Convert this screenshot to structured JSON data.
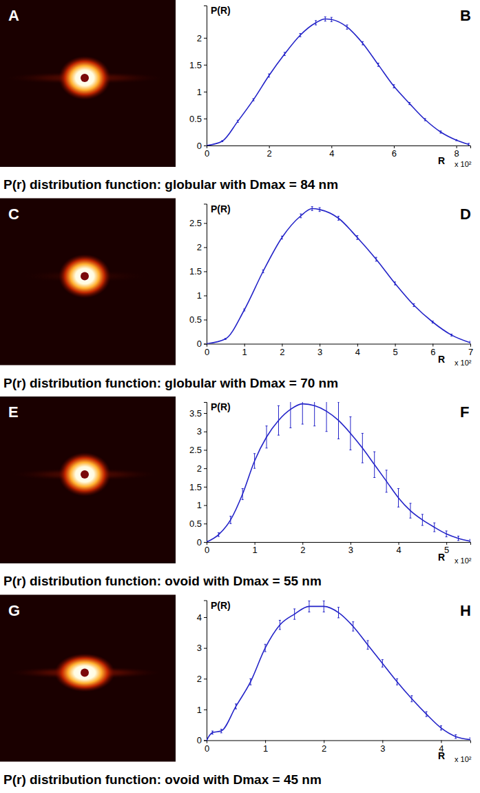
{
  "chart_data": [
    {
      "type": "line",
      "annotations": [
        "A",
        "B"
      ],
      "ylabel": "P(R)",
      "xlabel": "R",
      "x_multiplier": "x 10²",
      "caption": "P(r) distribution function: globular with Dmax = 84 nm",
      "color": "#2323c8",
      "xlim": [
        0,
        8.45
      ],
      "ylim": [
        0,
        2.6
      ],
      "xticks": [
        0,
        2,
        4,
        6,
        8
      ],
      "yticks": [
        0,
        0.5,
        1,
        1.5,
        2
      ],
      "x": [
        0,
        0.5,
        1,
        1.5,
        2,
        2.5,
        3,
        3.5,
        3.8,
        4,
        4.5,
        5,
        5.5,
        6,
        6.5,
        7,
        7.5,
        8,
        8.4
      ],
      "values": [
        0,
        0.08,
        0.45,
        0.85,
        1.3,
        1.7,
        2.05,
        2.28,
        2.35,
        2.34,
        2.2,
        1.9,
        1.5,
        1.1,
        0.78,
        0.48,
        0.25,
        0.1,
        0.02
      ],
      "errors": [
        0,
        0.01,
        0.02,
        0.02,
        0.03,
        0.03,
        0.03,
        0.04,
        0.04,
        0.04,
        0.04,
        0.03,
        0.03,
        0.03,
        0.02,
        0.02,
        0.02,
        0.01,
        0.02
      ]
    },
    {
      "type": "line",
      "annotations": [
        "C",
        "D"
      ],
      "ylabel": "P(R)",
      "xlabel": "R",
      "x_multiplier": "x 10²",
      "caption": "P(r) distribution function: globular with Dmax = 70 nm",
      "color": "#2323c8",
      "xlim": [
        0,
        7
      ],
      "ylim": [
        0,
        2.9
      ],
      "xticks": [
        0,
        1,
        2,
        3,
        4,
        5,
        6,
        7
      ],
      "yticks": [
        0,
        0.5,
        1,
        1.5,
        2,
        2.5
      ],
      "x": [
        0,
        0.5,
        1,
        1.5,
        2,
        2.5,
        2.8,
        3,
        3.5,
        4,
        4.5,
        5,
        5.5,
        6,
        6.5,
        7
      ],
      "values": [
        0,
        0.1,
        0.7,
        1.5,
        2.2,
        2.65,
        2.8,
        2.78,
        2.6,
        2.2,
        1.75,
        1.25,
        0.8,
        0.45,
        0.18,
        0.02
      ],
      "errors": [
        0,
        0.01,
        0.02,
        0.03,
        0.03,
        0.04,
        0.04,
        0.04,
        0.04,
        0.04,
        0.04,
        0.03,
        0.03,
        0.02,
        0.02,
        0.03
      ]
    },
    {
      "type": "line",
      "annotations": [
        "E",
        "F"
      ],
      "ylabel": "P(R)",
      "xlabel": "R",
      "x_multiplier": "x 10²",
      "caption": "P(r) distribution function: ovoid with Dmax = 55 nm",
      "color": "#2323c8",
      "xlim": [
        0,
        5.5
      ],
      "ylim": [
        0,
        3.8
      ],
      "xticks": [
        0,
        1,
        2,
        3,
        4,
        5
      ],
      "yticks": [
        0,
        0.5,
        1,
        1.5,
        2,
        2.5,
        3,
        3.5
      ],
      "x": [
        0,
        0.25,
        0.5,
        0.75,
        1,
        1.25,
        1.5,
        1.75,
        2,
        2.25,
        2.5,
        2.75,
        3,
        3.25,
        3.5,
        3.75,
        4,
        4.25,
        4.5,
        4.75,
        5,
        5.25,
        5.5
      ],
      "values": [
        0,
        0.2,
        0.6,
        1.3,
        2.2,
        2.85,
        3.3,
        3.6,
        3.75,
        3.7,
        3.55,
        3.3,
        2.95,
        2.55,
        2.1,
        1.65,
        1.2,
        0.85,
        0.6,
        0.4,
        0.22,
        0.1,
        0.02
      ],
      "errors": [
        0,
        0.05,
        0.1,
        0.15,
        0.2,
        0.3,
        0.4,
        0.5,
        0.55,
        0.55,
        0.55,
        0.5,
        0.45,
        0.4,
        0.35,
        0.3,
        0.25,
        0.2,
        0.15,
        0.12,
        0.08,
        0.06,
        0.05
      ]
    },
    {
      "type": "line",
      "annotations": [
        "G",
        "H"
      ],
      "ylabel": "P(R)",
      "xlabel": "R",
      "x_multiplier": "x 10²",
      "caption": "P(r) distribution function: ovoid with Dmax = 45 nm",
      "color": "#2323c8",
      "xlim": [
        0,
        4.5
      ],
      "ylim": [
        0,
        4.55
      ],
      "xticks": [
        0,
        1,
        2,
        3,
        4
      ],
      "yticks": [
        0,
        1,
        2,
        3,
        4
      ],
      "x": [
        0,
        0.1,
        0.25,
        0.5,
        0.75,
        1,
        1.25,
        1.5,
        1.75,
        2,
        2.25,
        2.5,
        2.75,
        3,
        3.25,
        3.5,
        3.75,
        4,
        4.25,
        4.5
      ],
      "values": [
        0,
        0.25,
        0.3,
        1.1,
        1.9,
        3.0,
        3.75,
        4.1,
        4.35,
        4.35,
        4.15,
        3.7,
        3.1,
        2.5,
        1.9,
        1.35,
        0.85,
        0.4,
        0.12,
        0.02
      ],
      "errors": [
        0,
        0.05,
        0.06,
        0.08,
        0.1,
        0.12,
        0.15,
        0.17,
        0.18,
        0.18,
        0.17,
        0.15,
        0.14,
        0.12,
        0.1,
        0.1,
        0.08,
        0.07,
        0.06,
        0.06
      ]
    }
  ]
}
